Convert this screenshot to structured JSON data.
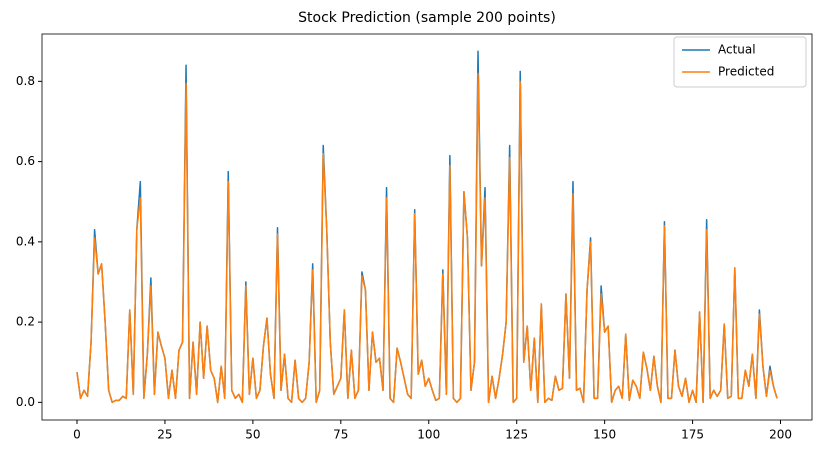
{
  "chart_data": {
    "type": "line",
    "title": "Stock Prediction (sample 200 points)",
    "x": [
      0,
      1,
      2,
      3,
      4,
      5,
      6,
      7,
      8,
      9,
      10,
      11,
      12,
      13,
      14,
      15,
      16,
      17,
      18,
      19,
      20,
      21,
      22,
      23,
      24,
      25,
      26,
      27,
      28,
      29,
      30,
      31,
      32,
      33,
      34,
      35,
      36,
      37,
      38,
      39,
      40,
      41,
      42,
      43,
      44,
      45,
      46,
      47,
      48,
      49,
      50,
      51,
      52,
      53,
      54,
      55,
      56,
      57,
      58,
      59,
      60,
      61,
      62,
      63,
      64,
      65,
      66,
      67,
      68,
      69,
      70,
      71,
      72,
      73,
      74,
      75,
      76,
      77,
      78,
      79,
      80,
      81,
      82,
      83,
      84,
      85,
      86,
      87,
      88,
      89,
      90,
      91,
      92,
      93,
      94,
      95,
      96,
      97,
      98,
      99,
      100,
      101,
      102,
      103,
      104,
      105,
      106,
      107,
      108,
      109,
      110,
      111,
      112,
      113,
      114,
      115,
      116,
      117,
      118,
      119,
      120,
      121,
      122,
      123,
      124,
      125,
      126,
      127,
      128,
      129,
      130,
      131,
      132,
      133,
      134,
      135,
      136,
      137,
      138,
      139,
      140,
      141,
      142,
      143,
      144,
      145,
      146,
      147,
      148,
      149,
      150,
      151,
      152,
      153,
      154,
      155,
      156,
      157,
      158,
      159,
      160,
      161,
      162,
      163,
      164,
      165,
      166,
      167,
      168,
      169,
      170,
      171,
      172,
      173,
      174,
      175,
      176,
      177,
      178,
      179,
      180,
      181,
      182,
      183,
      184,
      185,
      186,
      187,
      188,
      189,
      190,
      191,
      192,
      193,
      194,
      195,
      196,
      197,
      198,
      199
    ],
    "series": [
      {
        "name": "Actual",
        "color": "#1f77b4",
        "values": [
          0.075,
          0.01,
          0.03,
          0.015,
          0.15,
          0.43,
          0.32,
          0.345,
          0.2,
          0.03,
          0.0,
          0.005,
          0.005,
          0.015,
          0.01,
          0.23,
          0.02,
          0.43,
          0.55,
          0.01,
          0.12,
          0.31,
          0.02,
          0.175,
          0.14,
          0.11,
          0.01,
          0.08,
          0.01,
          0.13,
          0.15,
          0.84,
          0.01,
          0.15,
          0.02,
          0.2,
          0.06,
          0.19,
          0.08,
          0.06,
          0.0,
          0.09,
          0.01,
          0.575,
          0.03,
          0.01,
          0.02,
          0.0,
          0.3,
          0.02,
          0.11,
          0.01,
          0.03,
          0.14,
          0.21,
          0.07,
          0.01,
          0.435,
          0.03,
          0.12,
          0.01,
          0.0,
          0.105,
          0.01,
          0.0,
          0.01,
          0.1,
          0.345,
          0.0,
          0.03,
          0.64,
          0.43,
          0.15,
          0.02,
          0.04,
          0.06,
          0.23,
          0.01,
          0.13,
          0.01,
          0.03,
          0.325,
          0.28,
          0.03,
          0.175,
          0.1,
          0.11,
          0.03,
          0.535,
          0.01,
          0.0,
          0.135,
          0.1,
          0.06,
          0.02,
          0.01,
          0.48,
          0.07,
          0.105,
          0.04,
          0.06,
          0.03,
          0.005,
          0.01,
          0.33,
          0.02,
          0.615,
          0.01,
          0.0,
          0.01,
          0.525,
          0.41,
          0.03,
          0.1,
          0.875,
          0.34,
          0.535,
          0.0,
          0.065,
          0.01,
          0.06,
          0.12,
          0.2,
          0.64,
          0.0,
          0.01,
          0.825,
          0.1,
          0.19,
          0.03,
          0.16,
          0.0,
          0.245,
          0.0,
          0.01,
          0.005,
          0.065,
          0.03,
          0.035,
          0.27,
          0.06,
          0.55,
          0.03,
          0.035,
          0.0,
          0.28,
          0.41,
          0.01,
          0.01,
          0.29,
          0.175,
          0.19,
          0.0,
          0.03,
          0.04,
          0.01,
          0.17,
          0.005,
          0.055,
          0.04,
          0.01,
          0.125,
          0.085,
          0.03,
          0.115,
          0.04,
          0.0,
          0.45,
          0.01,
          0.01,
          0.13,
          0.04,
          0.015,
          0.06,
          0.0,
          0.03,
          0.0,
          0.225,
          0.0,
          0.455,
          0.01,
          0.03,
          0.015,
          0.03,
          0.195,
          0.01,
          0.015,
          0.335,
          0.01,
          0.01,
          0.08,
          0.04,
          0.12,
          0.01,
          0.23,
          0.09,
          0.015,
          0.09,
          0.04,
          0.01
        ]
      },
      {
        "name": "Predicted",
        "color": "#ff7f0e",
        "values": [
          0.075,
          0.01,
          0.03,
          0.015,
          0.15,
          0.41,
          0.32,
          0.345,
          0.2,
          0.03,
          0.0,
          0.005,
          0.005,
          0.015,
          0.01,
          0.23,
          0.02,
          0.43,
          0.51,
          0.01,
          0.12,
          0.29,
          0.02,
          0.175,
          0.14,
          0.11,
          0.01,
          0.08,
          0.01,
          0.13,
          0.15,
          0.795,
          0.01,
          0.15,
          0.02,
          0.2,
          0.06,
          0.19,
          0.08,
          0.06,
          0.0,
          0.09,
          0.01,
          0.55,
          0.03,
          0.01,
          0.02,
          0.0,
          0.29,
          0.02,
          0.11,
          0.01,
          0.03,
          0.14,
          0.21,
          0.07,
          0.01,
          0.42,
          0.03,
          0.12,
          0.01,
          0.0,
          0.105,
          0.01,
          0.0,
          0.01,
          0.1,
          0.33,
          0.0,
          0.03,
          0.62,
          0.43,
          0.15,
          0.02,
          0.04,
          0.06,
          0.23,
          0.01,
          0.13,
          0.01,
          0.03,
          0.315,
          0.28,
          0.03,
          0.175,
          0.1,
          0.11,
          0.03,
          0.51,
          0.01,
          0.0,
          0.135,
          0.1,
          0.06,
          0.02,
          0.01,
          0.47,
          0.07,
          0.105,
          0.04,
          0.06,
          0.03,
          0.005,
          0.01,
          0.32,
          0.02,
          0.59,
          0.01,
          0.0,
          0.01,
          0.525,
          0.41,
          0.03,
          0.1,
          0.82,
          0.34,
          0.51,
          0.0,
          0.065,
          0.01,
          0.06,
          0.12,
          0.2,
          0.61,
          0.0,
          0.01,
          0.8,
          0.1,
          0.19,
          0.03,
          0.16,
          0.0,
          0.245,
          0.0,
          0.01,
          0.005,
          0.065,
          0.03,
          0.035,
          0.27,
          0.06,
          0.52,
          0.03,
          0.035,
          0.0,
          0.28,
          0.4,
          0.01,
          0.01,
          0.27,
          0.175,
          0.19,
          0.0,
          0.03,
          0.04,
          0.01,
          0.17,
          0.005,
          0.055,
          0.04,
          0.01,
          0.125,
          0.085,
          0.03,
          0.115,
          0.04,
          0.0,
          0.44,
          0.01,
          0.01,
          0.13,
          0.04,
          0.015,
          0.06,
          0.0,
          0.03,
          0.0,
          0.225,
          0.0,
          0.43,
          0.01,
          0.03,
          0.015,
          0.03,
          0.195,
          0.01,
          0.015,
          0.335,
          0.01,
          0.01,
          0.08,
          0.04,
          0.12,
          0.01,
          0.22,
          0.09,
          0.015,
          0.08,
          0.04,
          0.01
        ]
      }
    ],
    "xlim": [
      -9.95,
      208.95
    ],
    "ylim": [
      -0.044,
      0.918
    ],
    "xticks": [
      0,
      25,
      50,
      75,
      100,
      125,
      150,
      175,
      200
    ],
    "yticks": [
      {
        "value": 0,
        "label": "0.0"
      },
      {
        "value": 0.2,
        "label": "0.2"
      },
      {
        "value": 0.4,
        "label": "0.4"
      },
      {
        "value": 0.6,
        "label": "0.6"
      },
      {
        "value": 0.8,
        "label": "0.8"
      }
    ],
    "legend": "upper right"
  }
}
